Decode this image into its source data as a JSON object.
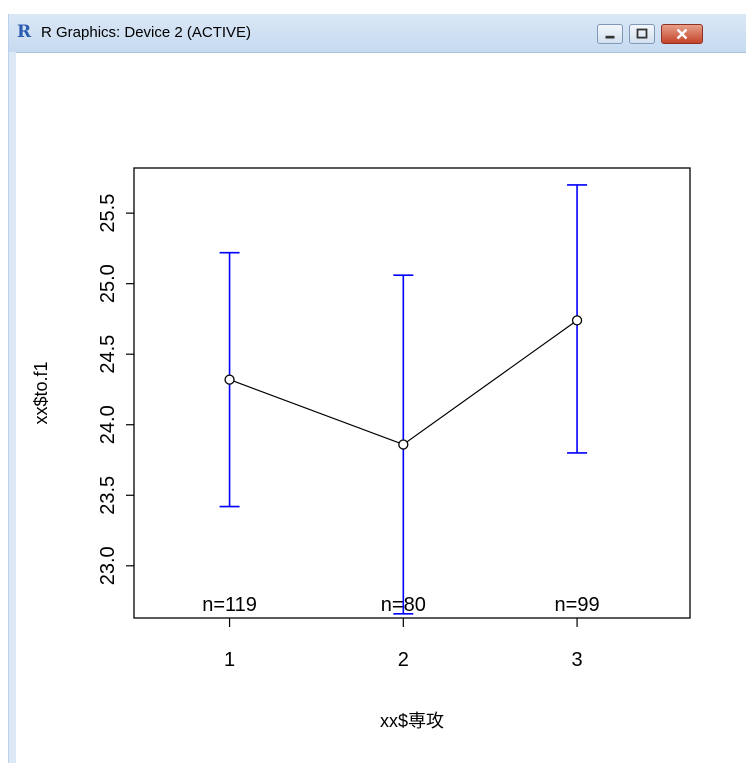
{
  "window": {
    "title": "R Graphics: Device 2 (ACTIVE)",
    "app_icon": "R"
  },
  "chart_data": {
    "type": "line",
    "title": "",
    "xlabel": "xx$専攻",
    "ylabel": "xx$to.f1",
    "categories": [
      "1",
      "2",
      "3"
    ],
    "x": [
      1,
      2,
      3
    ],
    "xlim": [
      0.45,
      3.65
    ],
    "ylim": [
      22.63,
      25.82
    ],
    "yticks": [
      23.0,
      23.5,
      24.0,
      24.5,
      25.0,
      25.5
    ],
    "ytick_labels": [
      "23.0",
      "23.5",
      "24.0",
      "24.5",
      "25.0",
      "25.5"
    ],
    "series": [
      {
        "values": [
          24.32,
          23.86,
          24.74
        ],
        "ci_lower": [
          23.42,
          22.66,
          23.8
        ],
        "ci_upper": [
          25.22,
          25.06,
          25.7
        ],
        "line_color": "#000000",
        "errorbar_color": "#0000ff",
        "marker": "open-circle"
      }
    ],
    "n_labels": [
      "n=119",
      "n=80",
      "n=99"
    ],
    "grid": false,
    "legend": "none"
  }
}
